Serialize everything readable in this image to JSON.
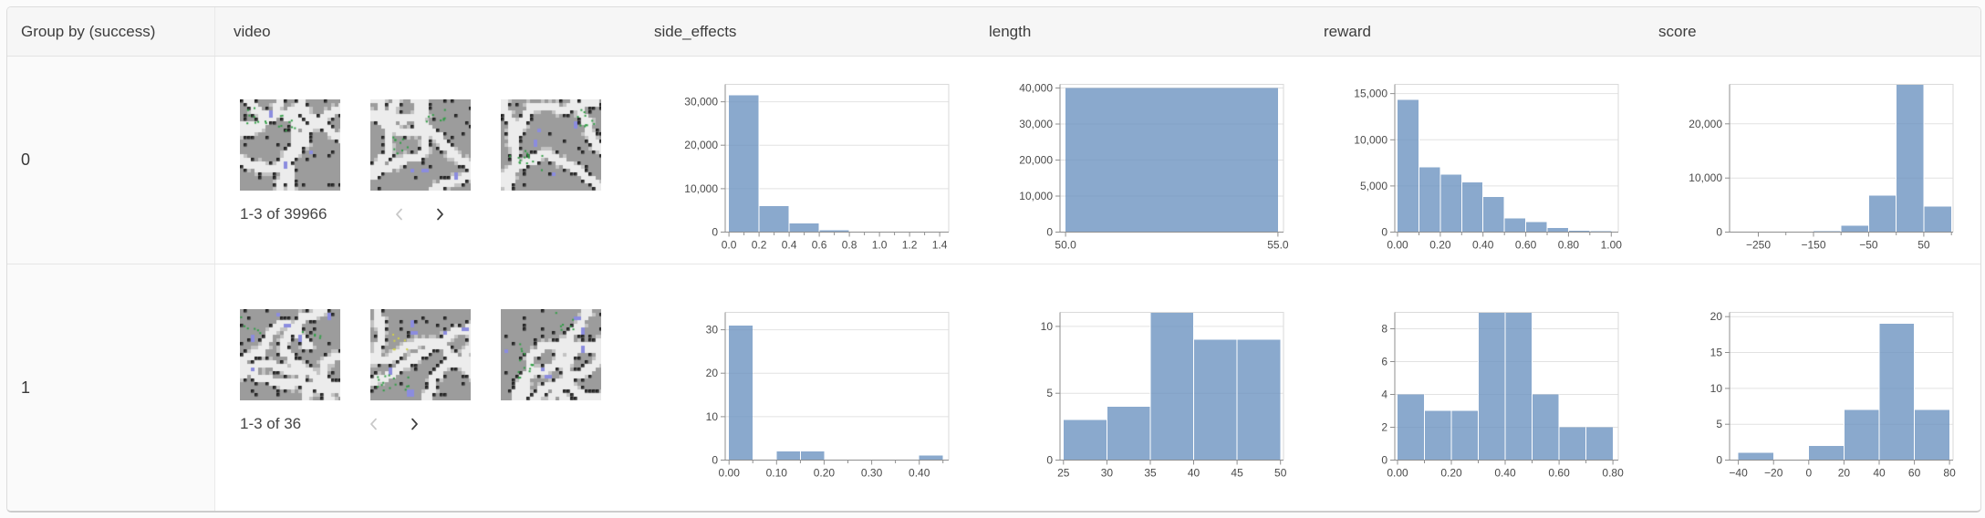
{
  "colors": {
    "bar": "#6d94c0",
    "bar_rendered": "#8aa9cd",
    "header_bg": "#f6f6f6",
    "group_col_bg": "#fafafa",
    "border": "#dcdcdc"
  },
  "header": {
    "columns": [
      {
        "key": "group",
        "label": "Group by (success)"
      },
      {
        "key": "video",
        "label": "video"
      },
      {
        "key": "side_effects",
        "label": "side_effects"
      },
      {
        "key": "length",
        "label": "length"
      },
      {
        "key": "reward",
        "label": "reward"
      },
      {
        "key": "score",
        "label": "score"
      }
    ]
  },
  "icons": {
    "prev": "chevron-left-icon",
    "next": "chevron-right-icon"
  },
  "rows": [
    {
      "group_value": "0",
      "video": {
        "pagination_label": "1-3 of 39966",
        "prev_enabled": false,
        "next_enabled": true,
        "thumbnail_count": 3
      },
      "charts": {
        "side_effects": {
          "type": "histogram",
          "bin_start": 0,
          "bin_width": 0.2,
          "values": [
            31500,
            6000,
            1950,
            430,
            56,
            20,
            10
          ],
          "xlim": [
            -0.025,
            1.46
          ],
          "ylim": [
            0,
            34000
          ],
          "yticks": [
            [
              0,
              "0"
            ],
            [
              10000,
              "10,000"
            ],
            [
              20000,
              "20,000"
            ],
            [
              30000,
              "30,000"
            ]
          ],
          "xticks": [
            [
              0,
              "0.0"
            ],
            [
              0.1,
              ""
            ],
            [
              0.2,
              "0.2"
            ],
            [
              0.3,
              ""
            ],
            [
              0.4,
              "0.4"
            ],
            [
              0.5,
              ""
            ],
            [
              0.6,
              "0.6"
            ],
            [
              0.7,
              ""
            ],
            [
              0.8,
              "0.8"
            ],
            [
              0.9,
              ""
            ],
            [
              1.0,
              "1.0"
            ],
            [
              1.1,
              ""
            ],
            [
              1.2,
              "1.2"
            ],
            [
              1.3,
              ""
            ],
            [
              1.4,
              "1.4"
            ]
          ]
        },
        "length": {
          "type": "histogram",
          "bin_start": 50,
          "bin_width": 5,
          "values": [
            39966
          ],
          "xlim": [
            49.87,
            55.13
          ],
          "ylim": [
            0,
            41000
          ],
          "yticks": [
            [
              0,
              "0"
            ],
            [
              10000,
              "10,000"
            ],
            [
              20000,
              "20,000"
            ],
            [
              30000,
              "30,000"
            ],
            [
              40000,
              "40,000"
            ]
          ],
          "xticks": [
            [
              50,
              "50.0"
            ],
            [
              55,
              "55.0"
            ]
          ]
        },
        "reward": {
          "type": "histogram",
          "bin_start": 0,
          "bin_width": 0.1,
          "values": [
            14300,
            7000,
            6200,
            5400,
            3800,
            1500,
            1100,
            450,
            130,
            86
          ],
          "xlim": [
            -0.013,
            1.033
          ],
          "ylim": [
            0,
            16000
          ],
          "yticks": [
            [
              0,
              "0"
            ],
            [
              5000,
              "5,000"
            ],
            [
              10000,
              "10,000"
            ],
            [
              15000,
              "15,000"
            ]
          ],
          "xticks": [
            [
              0,
              "0.00"
            ],
            [
              0.1,
              ""
            ],
            [
              0.2,
              "0.20"
            ],
            [
              0.3,
              ""
            ],
            [
              0.4,
              "0.40"
            ],
            [
              0.5,
              ""
            ],
            [
              0.6,
              "0.60"
            ],
            [
              0.7,
              ""
            ],
            [
              0.8,
              "0.80"
            ],
            [
              0.9,
              ""
            ],
            [
              1.0,
              "1.00"
            ]
          ]
        },
        "score": {
          "type": "histogram",
          "bin_start": -300,
          "bin_width": 50,
          "values": [
            0,
            0,
            0,
            130,
            1150,
            6700,
            27300,
            4686
          ],
          "xlim": [
            -302,
            103
          ],
          "ylim": [
            0,
            27300
          ],
          "yticks": [
            [
              0,
              "0"
            ],
            [
              10000,
              "10,000"
            ],
            [
              20000,
              "20,000"
            ]
          ],
          "xticks": [
            [
              -250,
              "−250"
            ],
            [
              -200,
              ""
            ],
            [
              -150,
              "−150"
            ],
            [
              -100,
              ""
            ],
            [
              -50,
              "−50"
            ],
            [
              0,
              ""
            ],
            [
              50,
              "50"
            ],
            [
              100,
              ""
            ]
          ]
        }
      }
    },
    {
      "group_value": "1",
      "video": {
        "pagination_label": "1-3 of 36",
        "prev_enabled": false,
        "next_enabled": true,
        "thumbnail_count": 3
      },
      "charts": {
        "side_effects": {
          "type": "histogram",
          "bin_start": 0,
          "bin_width": 0.05,
          "values": [
            31,
            0,
            2,
            2,
            0,
            0,
            0,
            0,
            1
          ],
          "xlim": [
            -0.008,
            0.462
          ],
          "ylim": [
            0,
            34
          ],
          "yticks": [
            [
              0,
              "0"
            ],
            [
              10,
              "10"
            ],
            [
              20,
              "20"
            ],
            [
              30,
              "30"
            ]
          ],
          "xticks": [
            [
              0,
              "0.00"
            ],
            [
              0.05,
              ""
            ],
            [
              0.1,
              "0.10"
            ],
            [
              0.15,
              ""
            ],
            [
              0.2,
              "0.20"
            ],
            [
              0.25,
              ""
            ],
            [
              0.3,
              "0.30"
            ],
            [
              0.35,
              ""
            ],
            [
              0.4,
              "0.40"
            ],
            [
              0.45,
              ""
            ]
          ]
        },
        "length": {
          "type": "histogram",
          "bin_start": 25,
          "bin_width": 5,
          "values": [
            3,
            4,
            11,
            9,
            9
          ],
          "xlim": [
            24.6,
            50.35
          ],
          "ylim": [
            0,
            11.05
          ],
          "yticks": [
            [
              0,
              "0"
            ],
            [
              5,
              "5"
            ],
            [
              10,
              "10"
            ]
          ],
          "xticks": [
            [
              25,
              "25"
            ],
            [
              30,
              "30"
            ],
            [
              35,
              "35"
            ],
            [
              40,
              "40"
            ],
            [
              45,
              "45"
            ],
            [
              50,
              "50"
            ]
          ]
        },
        "reward": {
          "type": "histogram",
          "bin_start": 0,
          "bin_width": 0.1,
          "values": [
            4,
            3,
            3,
            9,
            9,
            4,
            2,
            2
          ],
          "xlim": [
            -0.01,
            0.82
          ],
          "ylim": [
            0,
            9
          ],
          "yticks": [
            [
              0,
              "0"
            ],
            [
              2,
              "2"
            ],
            [
              4,
              "4"
            ],
            [
              6,
              "6"
            ],
            [
              8,
              "8"
            ]
          ],
          "xticks": [
            [
              0,
              "0.00"
            ],
            [
              0.1,
              ""
            ],
            [
              0.2,
              "0.20"
            ],
            [
              0.3,
              ""
            ],
            [
              0.4,
              "0.40"
            ],
            [
              0.5,
              ""
            ],
            [
              0.6,
              "0.60"
            ],
            [
              0.7,
              ""
            ],
            [
              0.8,
              "0.80"
            ]
          ]
        },
        "score": {
          "type": "histogram",
          "bin_start": -40,
          "bin_width": 20,
          "values": [
            1,
            0,
            2,
            7,
            19,
            7
          ],
          "xlim": [
            -45,
            82
          ],
          "ylim": [
            0,
            20.6
          ],
          "yticks": [
            [
              0,
              "0"
            ],
            [
              5,
              "5"
            ],
            [
              10,
              "10"
            ],
            [
              15,
              "15"
            ],
            [
              20,
              "20"
            ]
          ],
          "xticks": [
            [
              -40,
              "−40"
            ],
            [
              -20,
              "−20"
            ],
            [
              0,
              "0"
            ],
            [
              20,
              "20"
            ],
            [
              40,
              "40"
            ],
            [
              60,
              "60"
            ],
            [
              80,
              "80"
            ]
          ]
        }
      }
    }
  ]
}
